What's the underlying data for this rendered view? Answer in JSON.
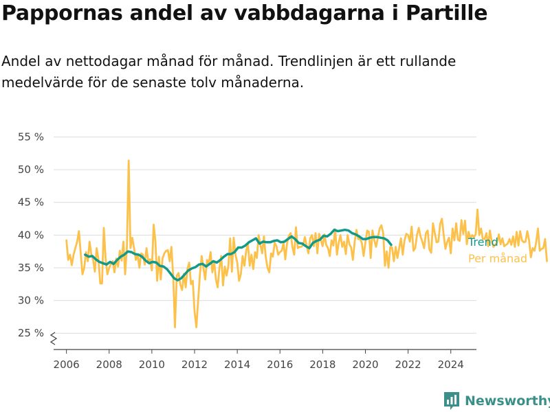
{
  "header": {
    "title": "Pappornas andel av vabbdagarna i Partille",
    "subtitle": "Andel av nettodagar månad för månad. Trendlinjen är ett rullande medelvärde för de senaste tolv månaderna."
  },
  "brand": {
    "name": "Newsworthy",
    "icon": "bar-chart-logo-icon",
    "color": "#3a8f89"
  },
  "chart_data": {
    "type": "line",
    "title": "Pappornas andel av vabbdagarna i Partille",
    "xlabel": "",
    "ylabel": "",
    "xlim": [
      2005.4,
      2025.2
    ],
    "ylim": [
      22.5,
      56
    ],
    "x_ticks": [
      2006,
      2008,
      2010,
      2012,
      2014,
      2016,
      2018,
      2020,
      2022,
      2024
    ],
    "x_tick_labels": [
      "2006",
      "2008",
      "2010",
      "2012",
      "2014",
      "2016",
      "2018",
      "2020",
      "2022",
      "2024"
    ],
    "y_ticks": [
      25,
      30,
      35,
      40,
      45,
      50,
      55
    ],
    "y_tick_labels": [
      "25 %",
      "30 %",
      "35 %",
      "40 %",
      "45 %",
      "50 %",
      "55 %"
    ],
    "grid": "horizontal",
    "axis_break": true,
    "legend_placement": "right, at line ends",
    "series": [
      {
        "name": "Trend",
        "color": "#12998a",
        "x_start": 2006.875,
        "x_step": 0.16667,
        "values": [
          37.0,
          36.7,
          36.8,
          36.3,
          35.9,
          35.7,
          35.5,
          35.9,
          35.6,
          36.2,
          36.7,
          37.0,
          37.5,
          37.4,
          37.1,
          37.0,
          36.7,
          36.1,
          35.7,
          35.9,
          35.8,
          35.3,
          35.2,
          34.8,
          34.1,
          33.4,
          33.1,
          33.4,
          34.0,
          34.6,
          34.9,
          35.1,
          35.5,
          35.6,
          35.2,
          35.6,
          36.0,
          35.8,
          36.2,
          36.7,
          37.1,
          37.1,
          37.4,
          38.1,
          38.1,
          38.4,
          38.9,
          39.2,
          39.5,
          38.7,
          39.0,
          38.9,
          38.9,
          39.1,
          39.2,
          38.9,
          39.0,
          39.4,
          39.8,
          39.4,
          38.8,
          38.7,
          38.3,
          38.0,
          38.8,
          39.1,
          39.3,
          39.9,
          39.8,
          40.2,
          40.8,
          40.6,
          40.7,
          40.8,
          40.7,
          40.3,
          40.1,
          39.8,
          39.4,
          39.4,
          39.6,
          39.7,
          39.7,
          39.6,
          39.5,
          39.2,
          38.5
        ]
      },
      {
        "name": "Per månad",
        "color": "#fcc14b",
        "x_start": 2006.0,
        "x_step": 0.08333,
        "values": [
          39.2,
          36.2,
          37.0,
          35.4,
          37.0,
          38.0,
          39.0,
          40.6,
          37.4,
          34.0,
          35.0,
          37.4,
          36.0,
          39.0,
          37.0,
          36.2,
          34.4,
          38.0,
          36.3,
          32.6,
          32.6,
          41.1,
          36.4,
          34.0,
          35.0,
          35.6,
          36.0,
          34.3,
          36.4,
          35.2,
          37.6,
          36.1,
          39.0,
          34.0,
          38.2,
          51.4,
          38.0,
          39.6,
          38.0,
          36.2,
          37.0,
          35.0,
          37.2,
          37.0,
          35.5,
          38.0,
          36.0,
          36.3,
          34.6,
          41.6,
          39.0,
          33.0,
          36.7,
          33.2,
          36.4,
          37.2,
          37.6,
          37.7,
          36.0,
          38.2,
          33.8,
          25.9,
          33.8,
          34.2,
          32.4,
          31.6,
          34.1,
          32.0,
          34.8,
          35.8,
          32.5,
          33.0,
          28.3,
          25.9,
          30.0,
          34.0,
          36.8,
          35.0,
          33.2,
          36.2,
          35.7,
          37.4,
          34.3,
          36.0,
          33.2,
          32.0,
          35.0,
          36.8,
          32.3,
          35.2,
          33.8,
          35.3,
          39.5,
          34.4,
          39.6,
          37.0,
          35.8,
          33.0,
          34.0,
          36.8,
          35.3,
          37.6,
          38.6,
          35.3,
          37.0,
          34.8,
          37.4,
          36.5,
          40.0,
          38.5,
          37.2,
          39.8,
          36.7,
          35.0,
          34.3,
          37.2,
          36.7,
          38.8,
          38.3,
          37.0,
          37.4,
          37.6,
          38.8,
          36.3,
          38.8,
          39.9,
          40.3,
          38.2,
          37.0,
          41.2,
          38.0,
          38.2,
          38.2,
          38.5,
          39.7,
          38.3,
          37.2,
          39.5,
          40.0,
          38.3,
          40.3,
          37.2,
          40.2,
          39.2,
          38.3,
          40.1,
          38.5,
          38.0,
          36.8,
          39.2,
          38.4,
          40.9,
          37.0,
          38.8,
          40.0,
          38.2,
          39.0,
          37.1,
          40.0,
          38.6,
          38.1,
          36.2,
          39.0,
          40.8,
          39.4,
          39.4,
          38.8,
          36.8,
          38.9,
          40.7,
          40.5,
          36.5,
          40.7,
          39.2,
          38.2,
          39.6,
          41.0,
          41.5,
          40.3,
          35.3,
          37.5,
          35.0,
          38.2,
          38.1,
          36.0,
          38.2,
          36.5,
          38.0,
          39.5,
          37.0,
          39.2,
          40.2,
          40.0,
          39.0,
          41.3,
          37.6,
          38.0,
          40.0,
          41.1,
          39.8,
          39.0,
          38.0,
          40.3,
          40.7,
          37.8,
          37.3,
          41.8,
          40.3,
          38.9,
          39.0,
          41.7,
          42.5,
          40.0,
          37.9,
          39.0,
          39.6,
          37.2,
          41.0,
          39.2,
          41.8,
          39.3,
          39.1,
          42.3,
          40.2,
          42.2,
          38.6,
          40.5,
          39.5,
          40.0,
          39.7,
          40.1,
          43.9,
          40.0,
          41.0,
          39.4,
          39.4,
          40.3,
          38.3,
          40.7,
          39.0,
          38.2,
          38.5,
          38.9,
          40.1,
          38.6,
          39.5,
          38.3,
          38.5,
          38.7,
          39.4,
          38.5,
          39.8,
          38.2,
          40.5,
          38.4,
          40.6,
          39.2,
          38.9,
          39.0,
          40.6,
          39.2,
          36.6,
          38.0,
          37.6,
          38.9,
          41.0,
          37.6,
          37.9,
          38.0,
          39.4,
          36.0
        ]
      }
    ]
  }
}
